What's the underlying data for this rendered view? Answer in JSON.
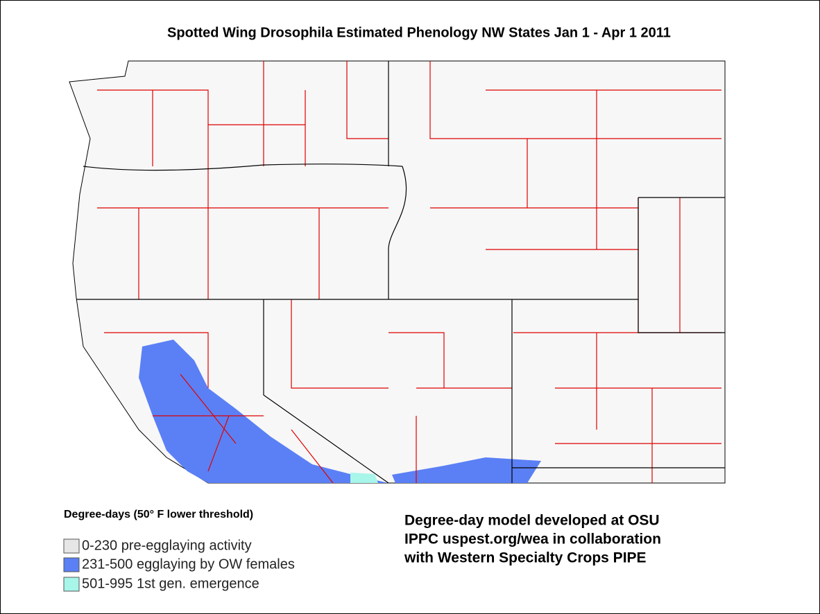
{
  "title": "Spotted Wing Drosophila Estimated Phenology NW States Jan 1 - Apr 1 2011",
  "legend": {
    "title": "Degree-days (50° F lower threshold)",
    "items": [
      {
        "label": "0-230  pre-egglaying activity",
        "color": "#e6e6e6"
      },
      {
        "label": "231-500 egglaying by OW females",
        "color": "#5b80f5"
      },
      {
        "label": "501-995  1st gen. emergence",
        "color": "#a8f5ea"
      }
    ]
  },
  "credits": [
    "Degree-day model developed at OSU",
    "IPPC uspest.org/wea in collaboration",
    "with Western Specialty Crops PIPE"
  ]
}
